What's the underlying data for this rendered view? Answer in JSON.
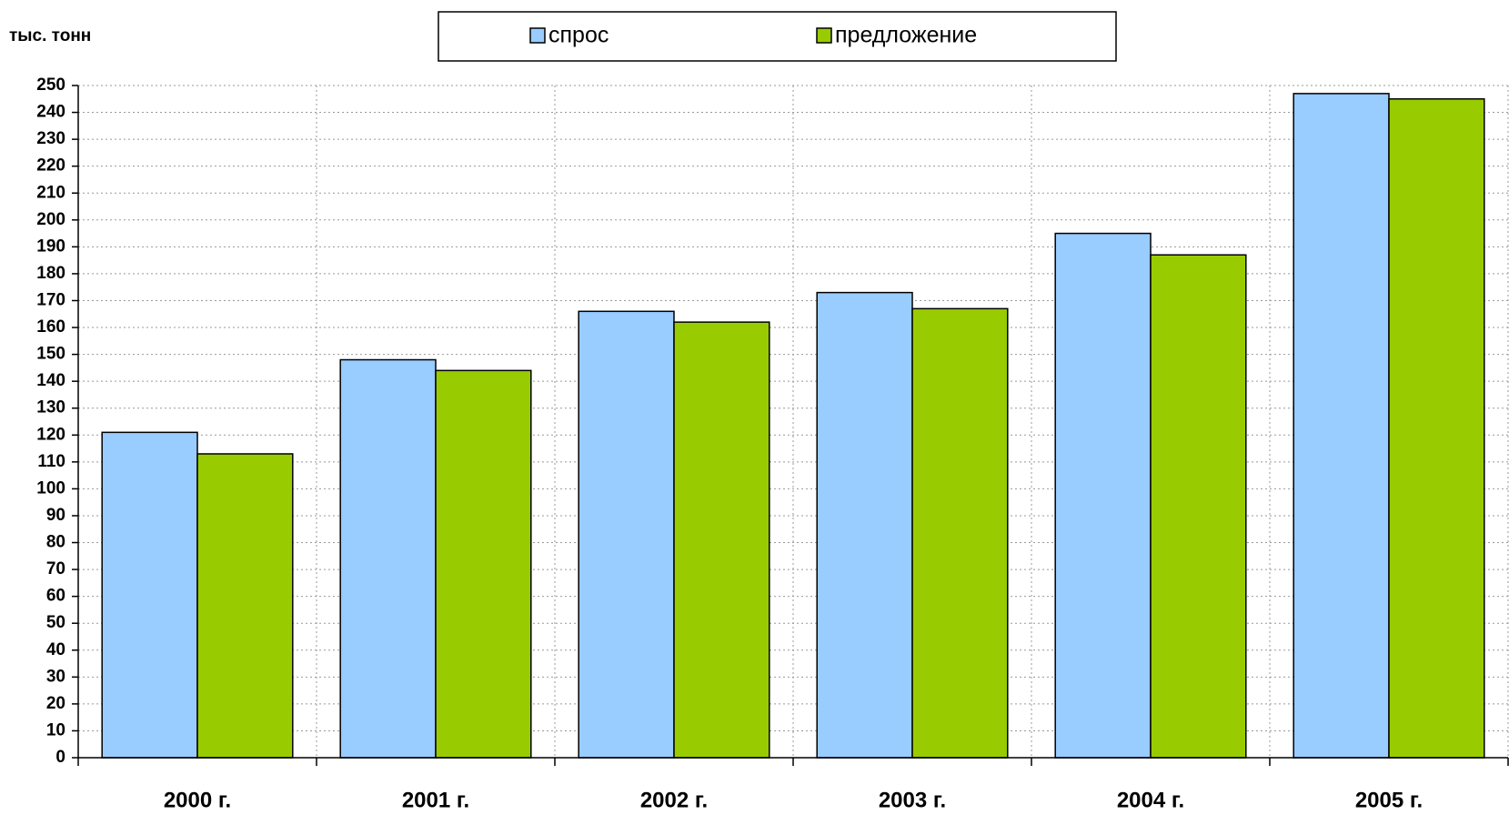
{
  "chart_data": {
    "type": "bar",
    "y_label": "тыс. тонн",
    "categories": [
      "2000 г.",
      "2001 г.",
      "2002 г.",
      "2003 г.",
      "2004 г.",
      "2005 г."
    ],
    "series": [
      {
        "name": "спрос",
        "color": "#99ccff",
        "values": [
          121,
          148,
          166,
          173,
          195,
          247
        ]
      },
      {
        "name": "предложение",
        "color": "#99cc00",
        "values": [
          113,
          144,
          162,
          167,
          187,
          245
        ]
      }
    ],
    "ylim": [
      0,
      250
    ],
    "yticks": [
      0,
      10,
      20,
      30,
      40,
      50,
      60,
      70,
      80,
      90,
      100,
      110,
      120,
      130,
      140,
      150,
      160,
      170,
      180,
      190,
      200,
      210,
      220,
      230,
      240,
      250
    ],
    "grid": true,
    "legend": "top"
  }
}
